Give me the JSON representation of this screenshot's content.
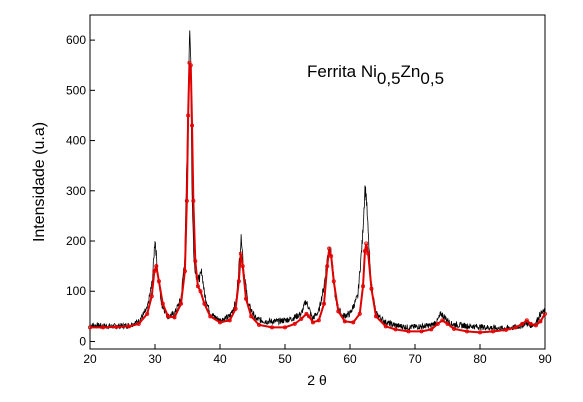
{
  "chart_data": {
    "type": "line",
    "title": "",
    "annotation": {
      "prefix": "Ferrita Ni",
      "sub1": "0,5",
      "mid": "Zn",
      "sub2": "0,5"
    },
    "xlabel": "2 θ",
    "ylabel": "Intensidade (u.a)",
    "xlim": [
      20,
      90
    ],
    "ylim": [
      -15,
      650
    ],
    "x_ticks": [
      "20",
      "30",
      "40",
      "50",
      "60",
      "70",
      "80",
      "90"
    ],
    "y_ticks": [
      "0",
      "100",
      "200",
      "300",
      "400",
      "500",
      "600"
    ],
    "grid": false,
    "legend": "none",
    "colors": {
      "experimental": "#000000",
      "fit": "#e00000"
    },
    "series": [
      {
        "style": "noisy-line",
        "color": "#000000",
        "x": [
          20,
          22,
          24,
          26,
          27.5,
          28.8,
          29.6,
          30.0,
          30.4,
          31.0,
          32,
          33,
          34,
          34.6,
          35.0,
          35.3,
          35.5,
          35.7,
          36.0,
          36.5,
          37.0,
          37.2,
          37.6,
          38.5,
          40,
          41.5,
          42.5,
          43.1,
          43.3,
          43.6,
          44.3,
          45.5,
          47,
          49,
          51,
          52.5,
          53.2,
          53.6,
          54.2,
          55.2,
          56.0,
          56.6,
          56.9,
          57.2,
          57.8,
          58.8,
          60,
          61.2,
          61.9,
          62.3,
          62.5,
          62.7,
          63.2,
          64.0,
          65.5,
          67,
          69,
          71,
          72.5,
          73.4,
          74.0,
          74.6,
          75.5,
          77,
          79,
          81,
          83,
          85,
          86.5,
          87.0,
          87.6,
          88.5,
          89.3,
          90
        ],
        "y": [
          32,
          31,
          30,
          32,
          40,
          65,
          120,
          205,
          140,
          75,
          50,
          55,
          85,
          170,
          420,
          610,
          560,
          300,
          160,
          120,
          130,
          140,
          95,
          55,
          42,
          50,
          80,
          180,
          210,
          150,
          75,
          45,
          40,
          40,
          45,
          55,
          80,
          70,
          45,
          60,
          110,
          175,
          190,
          165,
          80,
          50,
          55,
          90,
          200,
          305,
          290,
          240,
          120,
          55,
          38,
          32,
          28,
          30,
          32,
          40,
          55,
          48,
          35,
          32,
          30,
          28,
          26,
          27,
          32,
          38,
          32,
          35,
          55,
          60
        ]
      },
      {
        "style": "markers-line",
        "color": "#e00000",
        "x": [
          20,
          22,
          24,
          26,
          27.5,
          28.8,
          29.5,
          29.9,
          30.2,
          30.6,
          31.2,
          32,
          33,
          34,
          34.6,
          34.9,
          35.1,
          35.3,
          35.5,
          35.7,
          35.9,
          36.2,
          36.6,
          37.0,
          37.6,
          38.5,
          40,
          41.5,
          42.4,
          42.9,
          43.2,
          43.5,
          44.0,
          44.8,
          46,
          48,
          50,
          51.5,
          52.5,
          53.3,
          53.7,
          54.3,
          55.2,
          56.0,
          56.5,
          56.8,
          57.1,
          57.5,
          58.2,
          59.2,
          60.5,
          61.5,
          62.0,
          62.3,
          62.5,
          62.8,
          63.3,
          64.0,
          65.5,
          67,
          69,
          71,
          72.5,
          73.5,
          74.2,
          75.0,
          76,
          78,
          80,
          82,
          84,
          85.5,
          86.5,
          87.2,
          87.8,
          88.6,
          89.3,
          90
        ],
        "y": [
          28,
          28,
          29,
          30,
          35,
          55,
          90,
          140,
          150,
          120,
          75,
          50,
          48,
          75,
          140,
          280,
          450,
          555,
          550,
          430,
          280,
          160,
          110,
          100,
          75,
          50,
          38,
          42,
          65,
          120,
          175,
          150,
          85,
          50,
          33,
          28,
          28,
          35,
          45,
          55,
          50,
          38,
          42,
          75,
          150,
          185,
          170,
          120,
          60,
          40,
          38,
          55,
          110,
          180,
          195,
          175,
          105,
          50,
          30,
          24,
          20,
          20,
          24,
          35,
          42,
          35,
          25,
          20,
          18,
          20,
          23,
          28,
          35,
          42,
          35,
          32,
          40,
          55
        ]
      }
    ]
  }
}
